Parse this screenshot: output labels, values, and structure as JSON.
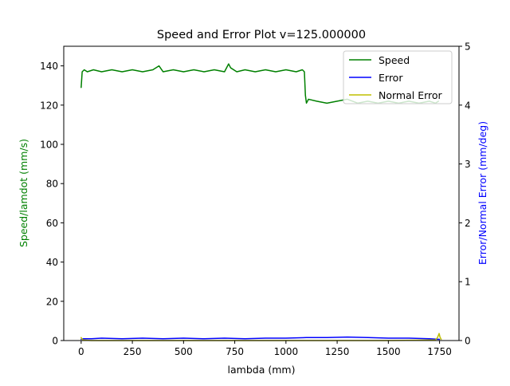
{
  "chart_data": {
    "type": "line",
    "title": "Speed and Error Plot v=125.000000",
    "xlabel": "lambda (mm)",
    "ylabel_left": "Speed/lamdot (mm/s)",
    "ylabel_right": "Error/Normal Error (mm/deg)",
    "xlim": [
      -85,
      1845
    ],
    "ylim_left": [
      0,
      150
    ],
    "ylim_right": [
      0,
      5
    ],
    "x_ticks": [
      0,
      250,
      500,
      750,
      1000,
      1250,
      1500,
      1750
    ],
    "x_tick_labels": [
      "0",
      "250",
      "500",
      "750",
      "1000",
      "1250",
      "1500",
      "1750"
    ],
    "y_left_ticks": [
      0,
      20,
      40,
      60,
      80,
      100,
      120,
      140
    ],
    "y_left_tick_labels": [
      "0",
      "20",
      "40",
      "60",
      "80",
      "100",
      "120",
      "140"
    ],
    "y_right_ticks": [
      0,
      1,
      2,
      3,
      4,
      5
    ],
    "y_right_tick_labels": [
      "0",
      "1",
      "2",
      "3",
      "4",
      "5"
    ],
    "grid": false,
    "legend_position": "top-right",
    "series": [
      {
        "name": "Speed",
        "axis": "left",
        "color": "#008000",
        "x": [
          0,
          5,
          15,
          30,
          60,
          100,
          150,
          200,
          250,
          300,
          350,
          380,
          400,
          450,
          500,
          550,
          600,
          650,
          700,
          720,
          730,
          760,
          800,
          850,
          900,
          950,
          1000,
          1050,
          1080,
          1090,
          1095,
          1100,
          1110,
          1150,
          1200,
          1250,
          1300,
          1350,
          1400,
          1450,
          1500,
          1550,
          1600,
          1650,
          1700,
          1730,
          1745
        ],
        "y": [
          129,
          137,
          138,
          137,
          138,
          137,
          138,
          137,
          138,
          137,
          138,
          140,
          137,
          138,
          137,
          138,
          137,
          138,
          137,
          141,
          139,
          137,
          138,
          137,
          138,
          137,
          138,
          137,
          138,
          137,
          125,
          121,
          123,
          122,
          121,
          122,
          123,
          121,
          122,
          121,
          122,
          121,
          122,
          121,
          122,
          121,
          122
        ]
      },
      {
        "name": "Error",
        "axis": "right",
        "color": "#0000ff",
        "x": [
          0,
          10,
          50,
          100,
          200,
          300,
          400,
          500,
          600,
          700,
          800,
          900,
          1000,
          1100,
          1200,
          1300,
          1400,
          1500,
          1600,
          1700,
          1750
        ],
        "y": [
          0.02,
          0.03,
          0.03,
          0.04,
          0.03,
          0.04,
          0.03,
          0.04,
          0.03,
          0.04,
          0.03,
          0.04,
          0.04,
          0.05,
          0.05,
          0.06,
          0.05,
          0.04,
          0.04,
          0.03,
          0.02
        ]
      },
      {
        "name": "Normal Error",
        "axis": "right",
        "color": "#bfbf00",
        "x": [
          0,
          5,
          10,
          50,
          100,
          500,
          1000,
          1500,
          1730,
          1740,
          1748,
          1752,
          1758
        ],
        "y": [
          0.05,
          0.02,
          0.01,
          0.0,
          0.0,
          0.0,
          0.0,
          0.0,
          0.01,
          0.05,
          0.12,
          0.06,
          0.02
        ]
      }
    ]
  },
  "colors": {
    "speed": "#008000",
    "error": "#0000ff",
    "normal_error": "#bfbf00",
    "axes": "#000000"
  }
}
